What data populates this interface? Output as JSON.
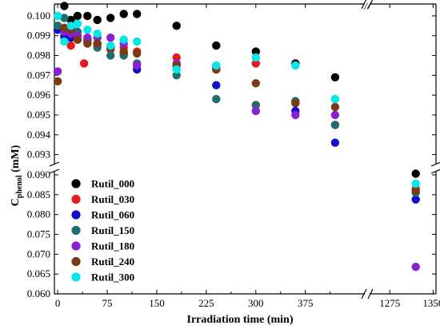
{
  "chart_data": {
    "type": "scatter",
    "xlabel": "Irradiation time (min)",
    "ylabel_main": "C",
    "ylabel_sub": "phenol",
    "ylabel_unit": " (mM)",
    "axis_break": "//",
    "x_tick_labels_left": [
      "0",
      "75",
      "150",
      "225",
      "300",
      "375"
    ],
    "x_tick_labels_right": [
      "1275",
      "1350"
    ],
    "y_tick_labels_upper": [
      "0.093",
      "0.094",
      "0.095",
      "0.096",
      "0.097",
      "0.098",
      "0.099",
      "0.100"
    ],
    "y_tick_labels_lower": [
      "0.060",
      "0.065",
      "0.070",
      "0.075",
      "0.080",
      "0.085",
      "0.090"
    ],
    "x_ranges": {
      "left": [
        -5,
        465
      ],
      "right": [
        1240,
        1355
      ]
    },
    "y_ranges": {
      "upper": [
        0.0925,
        0.1006
      ],
      "lower": [
        0.06,
        0.091
      ]
    },
    "legend_position": "bottom-left",
    "series": [
      {
        "name": "Rutil_000",
        "color": "#000000",
        "x": [
          0,
          10,
          20,
          30,
          45,
          60,
          80,
          100,
          120,
          180,
          240,
          300,
          360,
          420,
          1320
        ],
        "y": [
          0.0995,
          0.1005,
          0.0998,
          0.1,
          0.1,
          0.0998,
          0.0999,
          0.1001,
          0.1001,
          0.0995,
          0.0985,
          0.0982,
          0.0976,
          0.0969,
          0.0903
        ]
      },
      {
        "name": "Rutil_030",
        "color": "#e41a1c",
        "x": [
          0,
          10,
          20,
          30,
          40,
          60,
          80,
          100,
          120,
          180,
          240,
          300,
          360,
          420,
          1320
        ],
        "y": [
          0.0993,
          0.0989,
          0.0985,
          0.0988,
          0.0976,
          0.0985,
          0.0983,
          0.0984,
          0.0982,
          0.0979,
          0.0973,
          0.0976,
          0.0956,
          0.0945,
          0.0865
        ]
      },
      {
        "name": "Rutil_060",
        "color": "#1010c8",
        "x": [
          0,
          10,
          20,
          30,
          45,
          60,
          80,
          100,
          120,
          180,
          240,
          300,
          360,
          420,
          1320
        ],
        "y": [
          0.0993,
          0.099,
          0.0989,
          0.099,
          0.0988,
          0.0986,
          0.0984,
          0.0981,
          0.0973,
          0.0975,
          0.0965,
          0.0955,
          0.0952,
          0.0936,
          0.0838
        ]
      },
      {
        "name": "Rutil_150",
        "color": "#1e6e6e",
        "x": [
          0,
          10,
          20,
          30,
          45,
          60,
          80,
          100,
          120,
          180,
          240,
          300,
          360,
          420,
          1320
        ],
        "y": [
          0.0995,
          0.0999,
          0.0994,
          0.0992,
          0.0987,
          0.0984,
          0.098,
          0.098,
          0.0976,
          0.097,
          0.0958,
          0.0955,
          0.0957,
          0.0945,
          0.0855
        ]
      },
      {
        "name": "Rutil_180",
        "color": "#8b1fd2",
        "x": [
          0,
          10,
          20,
          30,
          45,
          60,
          80,
          100,
          120,
          180,
          240,
          300,
          360,
          420,
          1320
        ],
        "y": [
          0.0972,
          0.0992,
          0.0991,
          0.099,
          0.0989,
          0.0989,
          0.0989,
          0.0986,
          0.0975,
          0.0976,
          0.0974,
          0.0952,
          0.095,
          0.095,
          0.0668
        ]
      },
      {
        "name": "Rutil_240",
        "color": "#7a3a12",
        "x": [
          0,
          10,
          20,
          30,
          45,
          60,
          80,
          100,
          120,
          180,
          240,
          300,
          360,
          420,
          1320
        ],
        "y": [
          0.0967,
          0.0994,
          0.0993,
          0.0988,
          0.0986,
          0.0986,
          0.0984,
          0.0982,
          0.0981,
          0.0975,
          0.0973,
          0.0966,
          0.0956,
          0.0954,
          0.086
        ]
      },
      {
        "name": "Rutil_300",
        "color": "#00e8e8",
        "x": [
          0,
          10,
          20,
          30,
          45,
          60,
          80,
          100,
          120,
          180,
          240,
          300,
          360,
          420,
          1320
        ],
        "y": [
          0.1,
          0.0987,
          0.0995,
          0.0996,
          0.0993,
          0.0991,
          0.0985,
          0.0988,
          0.0987,
          0.0973,
          0.0975,
          0.0979,
          0.0975,
          0.0958,
          0.0878
        ]
      }
    ]
  }
}
